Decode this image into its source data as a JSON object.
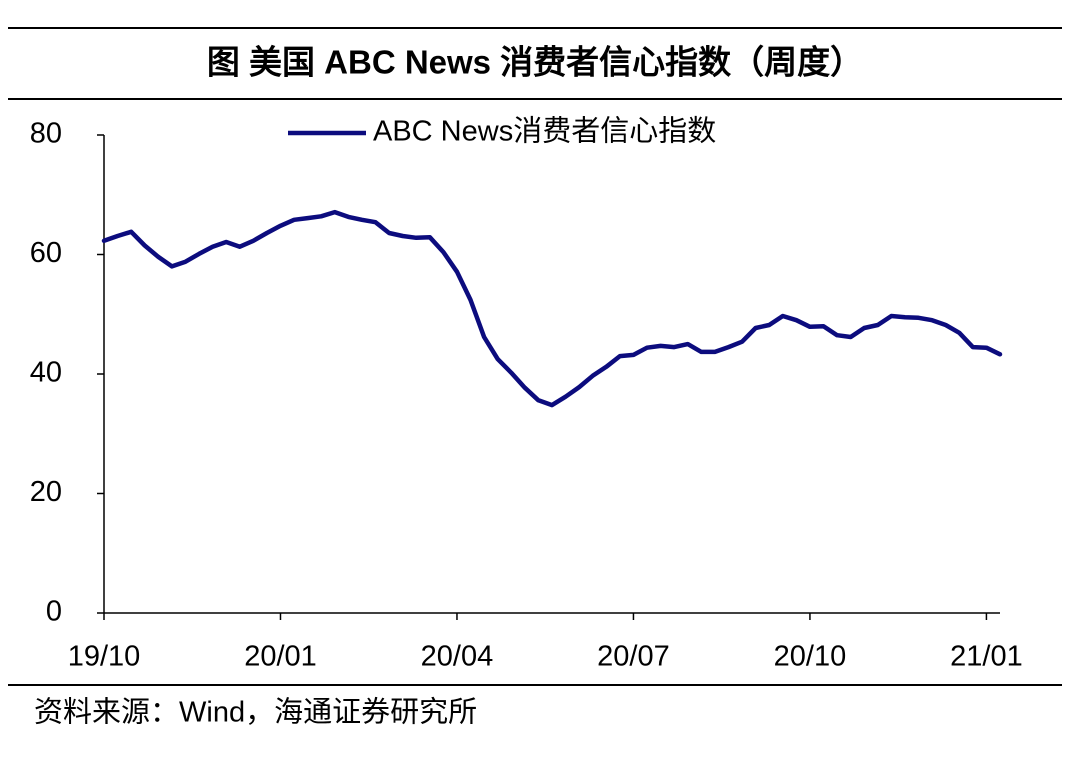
{
  "chart_data": {
    "type": "line",
    "title": "图  美国 ABC News 消费者信心指数（周度）",
    "source": "资料来源：Wind，海通证券研究所",
    "categories": [
      "19/10",
      null,
      null,
      null,
      null,
      null,
      null,
      null,
      null,
      null,
      null,
      null,
      null,
      "20/01",
      null,
      null,
      null,
      null,
      null,
      null,
      null,
      null,
      null,
      null,
      null,
      null,
      "20/04",
      null,
      null,
      null,
      null,
      null,
      null,
      null,
      null,
      null,
      null,
      null,
      null,
      "20/07",
      null,
      null,
      null,
      null,
      null,
      null,
      null,
      null,
      null,
      null,
      null,
      null,
      "20/10",
      null,
      null,
      null,
      null,
      null,
      null,
      null,
      null,
      null,
      null,
      null,
      null,
      "21/01",
      null
    ],
    "series": [
      {
        "name": "ABC News消费者信心指数",
        "color": "#0c0c7e",
        "values": [
          62.3,
          63.1,
          63.8,
          61.5,
          59.6,
          58.0,
          58.8,
          60.1,
          61.3,
          62.1,
          61.3,
          62.3,
          63.6,
          64.8,
          65.8,
          66.1,
          66.4,
          67.1,
          66.3,
          65.8,
          65.4,
          63.6,
          63.1,
          62.8,
          62.9,
          60.4,
          57.1,
          52.4,
          46.2,
          42.5,
          40.2,
          37.7,
          35.6,
          34.8,
          36.2,
          37.8,
          39.7,
          41.2,
          43.0,
          43.2,
          44.4,
          44.7,
          44.5,
          45.0,
          43.7,
          43.7,
          44.5,
          45.4,
          47.7,
          48.2,
          49.7,
          49.0,
          47.9,
          48.0,
          46.5,
          46.2,
          47.7,
          48.2,
          49.7,
          49.5,
          49.4,
          49.0,
          48.2,
          46.9,
          44.5,
          44.4,
          43.3
        ]
      }
    ],
    "ylim": [
      0,
      80
    ],
    "yticks": [
      0,
      20,
      40,
      60,
      80
    ],
    "legend": "top"
  }
}
